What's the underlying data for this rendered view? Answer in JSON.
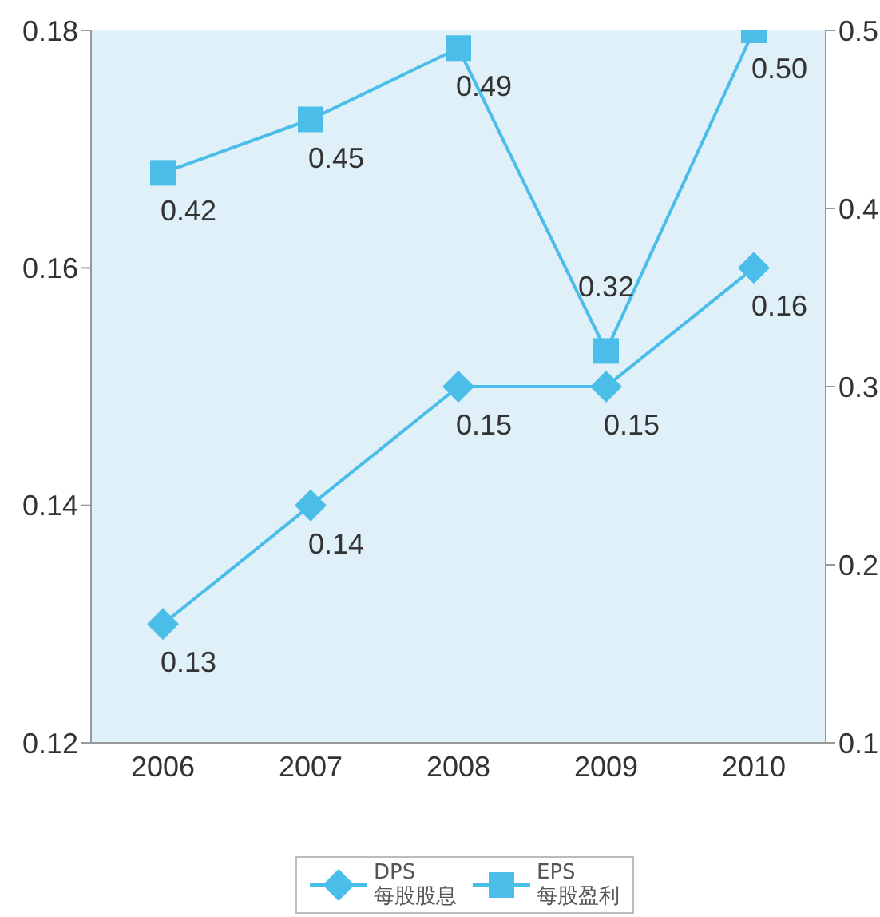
{
  "chart_data": {
    "type": "line",
    "categories": [
      "2006",
      "2007",
      "2008",
      "2009",
      "2010"
    ],
    "series": [
      {
        "name": "DPS\n每股股息",
        "color": "#4bbde9",
        "values": [
          0.13,
          0.14,
          0.15,
          0.15,
          0.16
        ],
        "marker": "diamond"
      },
      {
        "name": "EPS\n每股盈利",
        "color": "#4bbde9",
        "values": [
          0.42,
          0.45,
          0.49,
          0.32,
          0.5
        ],
        "value_labels": [
          "0.42",
          "0.45",
          "0.49",
          "0.32",
          "0.50"
        ],
        "axis": "y2",
        "marker": "square"
      }
    ],
    "ylim": [
      0.12,
      0.18
    ],
    "yticks": [
      0.12,
      0.14,
      0.16,
      0.18
    ],
    "y2lim": [
      0.1,
      0.5
    ],
    "y2ticks": [
      0.1,
      0.2,
      0.3,
      0.4,
      0.5
    ],
    "data_labels": true,
    "legend": "bottom"
  }
}
